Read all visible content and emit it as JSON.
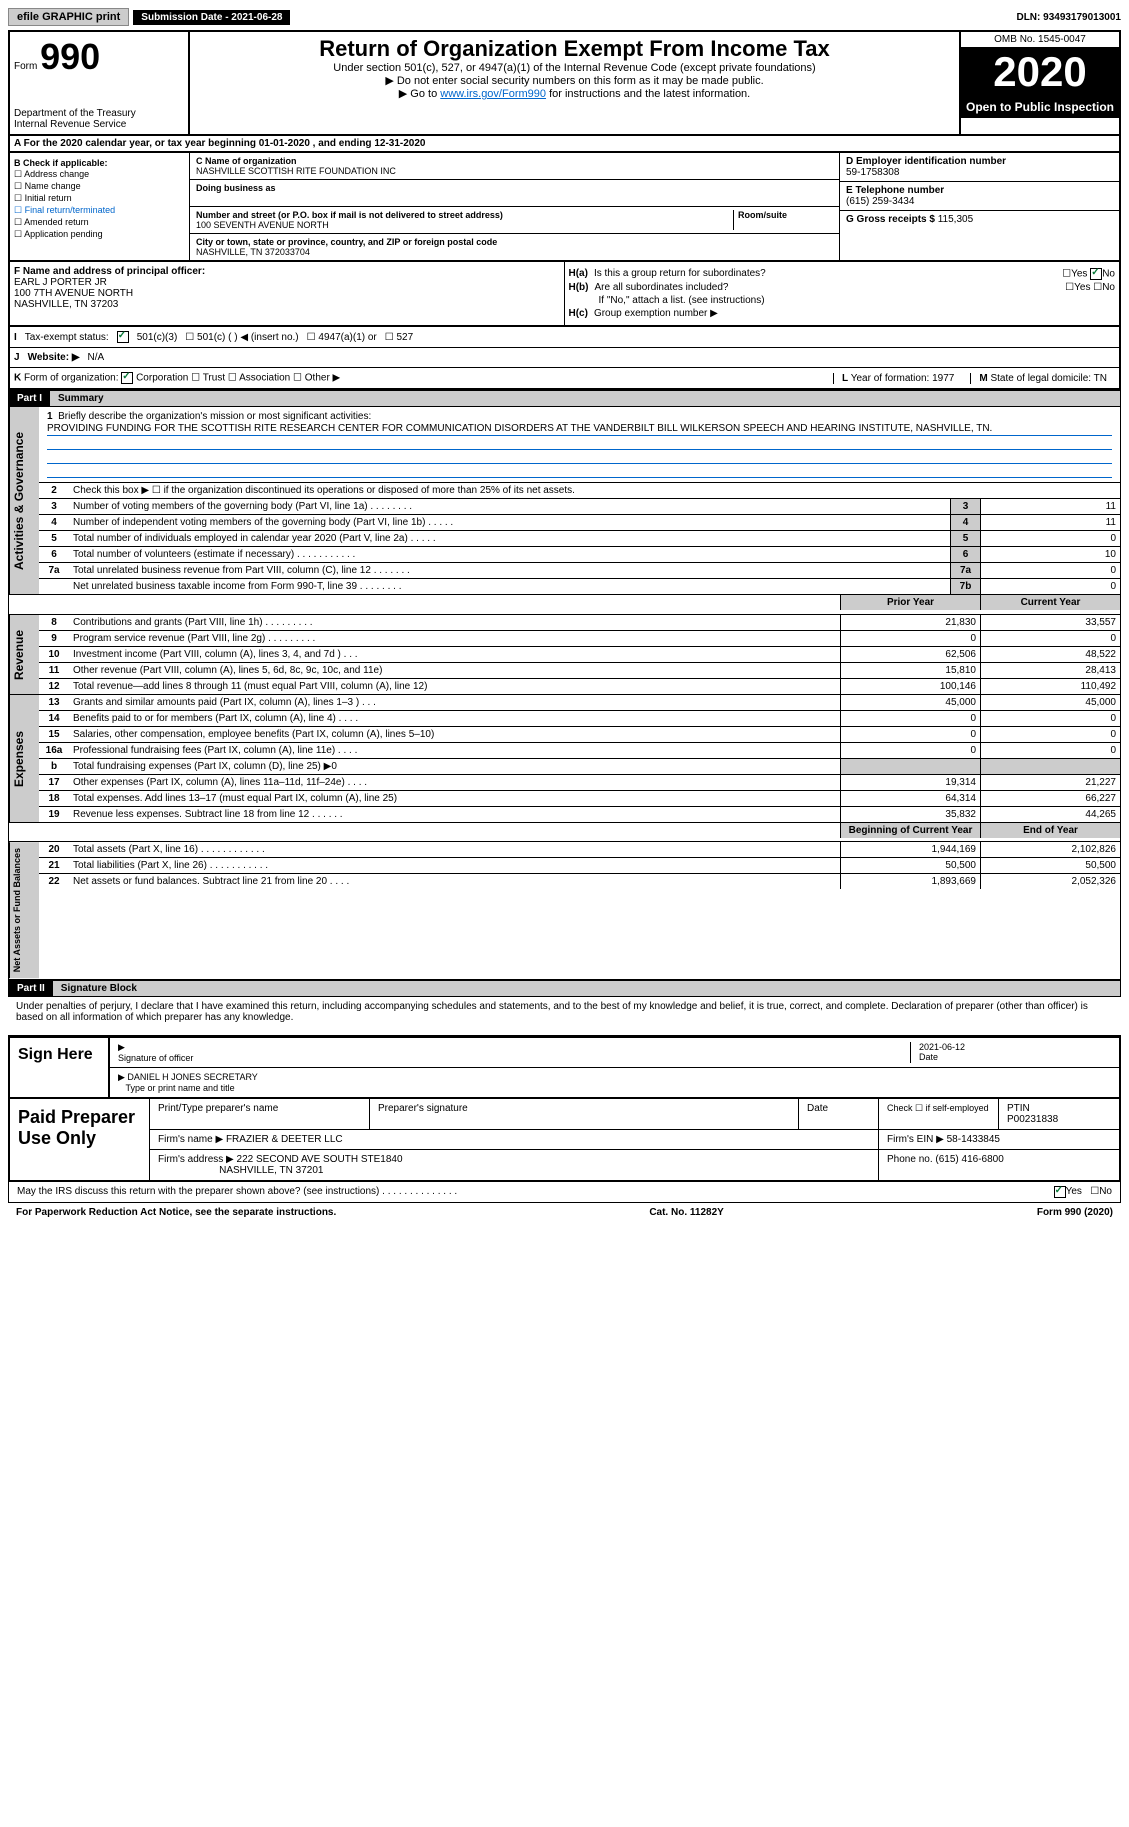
{
  "topbar": {
    "efile_btn": "efile GRAPHIC print",
    "sub_date_label": "Submission Date - 2021-06-28",
    "dln": "DLN: 93493179013001"
  },
  "header": {
    "form_prefix": "Form",
    "form_num": "990",
    "dept": "Department of the Treasury",
    "irs": "Internal Revenue Service",
    "title": "Return of Organization Exempt From Income Tax",
    "subtitle": "Under section 501(c), 527, or 4947(a)(1) of the Internal Revenue Code (except private foundations)",
    "note1": "▶ Do not enter social security numbers on this form as it may be made public.",
    "note2_pre": "▶ Go to ",
    "note2_link": "www.irs.gov/Form990",
    "note2_post": " for instructions and the latest information.",
    "omb": "OMB No. 1545-0047",
    "year": "2020",
    "open": "Open to Public Inspection"
  },
  "period": "A For the 2020 calendar year, or tax year beginning 01-01-2020    , and ending 12-31-2020",
  "colB": {
    "hdr": "B Check if applicable:",
    "items": [
      "Address change",
      "Name change",
      "Initial return",
      "Final return/terminated",
      "Amended return",
      "Application pending"
    ]
  },
  "colC": {
    "name_lbl": "C Name of organization",
    "name": "NASHVILLE SCOTTISH RITE FOUNDATION INC",
    "dba_lbl": "Doing business as",
    "addr_lbl": "Number and street (or P.O. box if mail is not delivered to street address)",
    "room_lbl": "Room/suite",
    "addr": "100 SEVENTH AVENUE NORTH",
    "city_lbl": "City or town, state or province, country, and ZIP or foreign postal code",
    "city": "NASHVILLE, TN  372033704"
  },
  "colDE": {
    "d_lbl": "D Employer identification number",
    "ein": "59-1758308",
    "e_lbl": "E Telephone number",
    "phone": "(615) 259-3434",
    "g_lbl": "G Gross receipts $",
    "g_val": "115,305"
  },
  "F": {
    "lbl": "F Name and address of principal officer:",
    "name": "EARL J PORTER JR",
    "addr1": "100 7TH AVENUE NORTH",
    "addr2": "NASHVILLE, TN  37203"
  },
  "H": {
    "a_lbl": "H(a)",
    "a_text": "Is this a group return for subordinates?",
    "a_yes": "Yes",
    "a_no": "No",
    "b_lbl": "H(b)",
    "b_text": "Are all subordinates included?",
    "b_nolist": "If \"No,\" attach a list. (see instructions)",
    "c_lbl": "H(c)",
    "c_text": "Group exemption number ▶"
  },
  "I": {
    "lbl": "I",
    "text": "Tax-exempt status:",
    "c3": "501(c)(3)",
    "c": "501(c) (  ) ◀ (insert no.)",
    "a1": "4947(a)(1) or",
    "527": "527"
  },
  "J": {
    "lbl": "J",
    "text": "Website: ▶",
    "val": "N/A"
  },
  "K": {
    "lbl": "K",
    "text": "Form of organization:",
    "corp": "Corporation",
    "trust": "Trust",
    "assoc": "Association",
    "other": "Other ▶"
  },
  "L": {
    "lbl": "L",
    "text": "Year of formation: 1977"
  },
  "M": {
    "lbl": "M",
    "text": "State of legal domicile: TN"
  },
  "part1": {
    "hdr": "Part I",
    "title": "Summary"
  },
  "gov": {
    "side": "Activities & Governance",
    "l1": "Briefly describe the organization's mission or most significant activities:",
    "mission": "PROVIDING FUNDING FOR THE SCOTTISH RITE RESEARCH CENTER FOR COMMUNICATION DISORDERS AT THE VANDERBILT BILL WILKERSON SPEECH AND HEARING INSTITUTE, NASHVILLE, TN.",
    "l2": "Check this box ▶ ☐ if the organization discontinued its operations or disposed of more than 25% of its net assets.",
    "rows": [
      {
        "n": "3",
        "d": "Number of voting members of the governing body (Part VI, line 1a)   .    .    .    .    .    .    .    .",
        "b": "3",
        "v": "11"
      },
      {
        "n": "4",
        "d": "Number of independent voting members of the governing body (Part VI, line 1b)   .    .    .    .    .",
        "b": "4",
        "v": "11"
      },
      {
        "n": "5",
        "d": "Total number of individuals employed in calendar year 2020 (Part V, line 2a)   .    .    .    .    .",
        "b": "5",
        "v": "0"
      },
      {
        "n": "6",
        "d": "Total number of volunteers (estimate if necessary)   .    .    .    .    .    .    .    .    .    .    .",
        "b": "6",
        "v": "10"
      },
      {
        "n": "7a",
        "d": "Total unrelated business revenue from Part VIII, column (C), line 12   .    .    .    .    .    .    .",
        "b": "7a",
        "v": "0"
      },
      {
        "n": "",
        "d": "Net unrelated business taxable income from Form 990-T, line 39   .    .    .    .    .    .    .    .",
        "b": "7b",
        "v": "0"
      }
    ]
  },
  "colhdr": {
    "prior": "Prior Year",
    "current": "Current Year"
  },
  "rev": {
    "side": "Revenue",
    "rows": [
      {
        "n": "8",
        "d": "Contributions and grants (Part VIII, line 1h)   .    .    .    .    .    .    .    .    .",
        "p": "21,830",
        "c": "33,557"
      },
      {
        "n": "9",
        "d": "Program service revenue (Part VIII, line 2g)   .    .    .    .    .    .    .    .    .",
        "p": "0",
        "c": "0"
      },
      {
        "n": "10",
        "d": "Investment income (Part VIII, column (A), lines 3, 4, and 7d )   .    .    .",
        "p": "62,506",
        "c": "48,522"
      },
      {
        "n": "11",
        "d": "Other revenue (Part VIII, column (A), lines 5, 6d, 8c, 9c, 10c, and 11e)",
        "p": "15,810",
        "c": "28,413"
      },
      {
        "n": "12",
        "d": "Total revenue—add lines 8 through 11 (must equal Part VIII, column (A), line 12)",
        "p": "100,146",
        "c": "110,492"
      }
    ]
  },
  "exp": {
    "side": "Expenses",
    "rows": [
      {
        "n": "13",
        "d": "Grants and similar amounts paid (Part IX, column (A), lines 1–3 )   .    .    .",
        "p": "45,000",
        "c": "45,000"
      },
      {
        "n": "14",
        "d": "Benefits paid to or for members (Part IX, column (A), line 4)   .    .    .    .",
        "p": "0",
        "c": "0"
      },
      {
        "n": "15",
        "d": "Salaries, other compensation, employee benefits (Part IX, column (A), lines 5–10)",
        "p": "0",
        "c": "0"
      },
      {
        "n": "16a",
        "d": "Professional fundraising fees (Part IX, column (A), line 11e)   .    .    .    .",
        "p": "0",
        "c": "0"
      },
      {
        "n": "b",
        "d": "Total fundraising expenses (Part IX, column (D), line 25) ▶0",
        "p": "",
        "c": "",
        "shaded": true
      },
      {
        "n": "17",
        "d": "Other expenses (Part IX, column (A), lines 11a–11d, 11f–24e)   .    .    .    .",
        "p": "19,314",
        "c": "21,227"
      },
      {
        "n": "18",
        "d": "Total expenses. Add lines 13–17 (must equal Part IX, column (A), line 25)",
        "p": "64,314",
        "c": "66,227"
      },
      {
        "n": "19",
        "d": "Revenue less expenses. Subtract line 18 from line 12   .    .    .    .    .    .",
        "p": "35,832",
        "c": "44,265"
      }
    ]
  },
  "net": {
    "side": "Net Assets or Fund Balances",
    "hdr_b": "Beginning of Current Year",
    "hdr_e": "End of Year",
    "rows": [
      {
        "n": "20",
        "d": "Total assets (Part X, line 16)   .    .    .    .    .    .    .    .    .    .    .    .",
        "p": "1,944,169",
        "c": "2,102,826"
      },
      {
        "n": "21",
        "d": "Total liabilities (Part X, line 26)   .    .    .    .    .    .    .    .    .    .    .",
        "p": "50,500",
        "c": "50,500"
      },
      {
        "n": "22",
        "d": "Net assets or fund balances. Subtract line 21 from line 20   .    .    .    .",
        "p": "1,893,669",
        "c": "2,052,326"
      }
    ]
  },
  "part2": {
    "hdr": "Part II",
    "title": "Signature Block"
  },
  "sig": {
    "penalty": "Under penalties of perjury, I declare that I have examined this return, including accompanying schedules and statements, and to the best of my knowledge and belief, it is true, correct, and complete. Declaration of preparer (other than officer) is based on all information of which preparer has any knowledge.",
    "sign_here": "Sign Here",
    "sig_officer": "Signature of officer",
    "date": "2021-06-12",
    "date_lbl": "Date",
    "name": "DANIEL H JONES SECRETARY",
    "name_lbl": "Type or print name and title"
  },
  "paid": {
    "hdr": "Paid Preparer Use Only",
    "print_lbl": "Print/Type preparer's name",
    "prep_sig_lbl": "Preparer's signature",
    "date_lbl": "Date",
    "check_lbl": "Check ☐ if self-employed",
    "ptin_lbl": "PTIN",
    "ptin": "P00231838",
    "firm_name_lbl": "Firm's name    ▶",
    "firm_name": "FRAZIER & DEETER LLC",
    "firm_ein_lbl": "Firm's EIN ▶",
    "firm_ein": "58-1433845",
    "firm_addr_lbl": "Firm's address ▶",
    "firm_addr": "222 SECOND AVE SOUTH STE1840",
    "firm_city": "NASHVILLE, TN  37201",
    "phone_lbl": "Phone no.",
    "phone": "(615) 416-6800"
  },
  "discuss": "May the IRS discuss this return with the preparer shown above? (see instructions)   .    .    .    .    .    .    .    .    .    .    .    .    .    .",
  "discuss_yes": "Yes",
  "discuss_no": "No",
  "footer": {
    "pra": "For Paperwork Reduction Act Notice, see the separate instructions.",
    "cat": "Cat. No. 11282Y",
    "form": "Form 990 (2020)"
  }
}
